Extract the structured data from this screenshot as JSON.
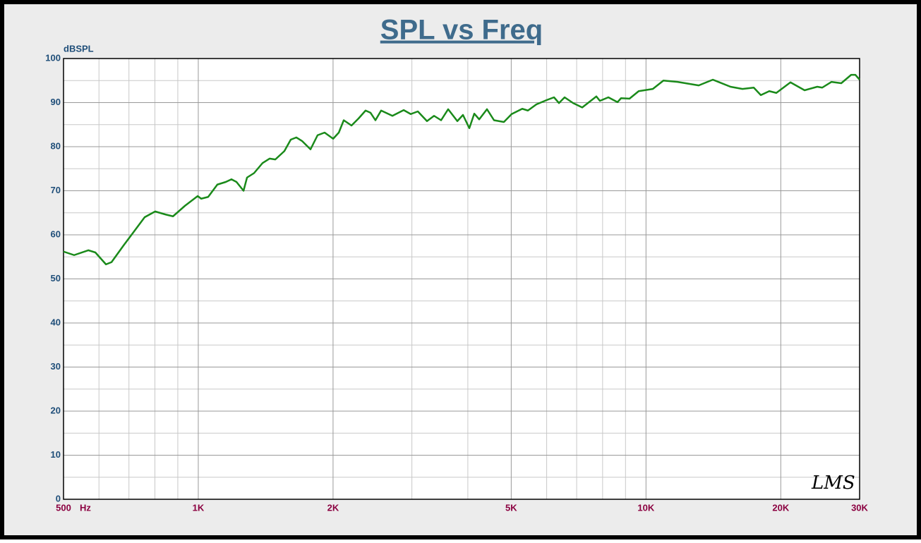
{
  "chart_data": {
    "type": "line",
    "title": "SPL vs Freq",
    "y_label": "dBSPL",
    "x_label": "Hz",
    "annotation": "LMS",
    "x_scale": "log",
    "grid": true,
    "xlim": [
      500,
      30000
    ],
    "ylim": [
      0,
      100
    ],
    "xticks": [
      {
        "value": 500,
        "label": "500"
      },
      {
        "value": 1000,
        "label": "1K"
      },
      {
        "value": 2000,
        "label": "2K"
      },
      {
        "value": 5000,
        "label": "5K"
      },
      {
        "value": 10000,
        "label": "10K"
      },
      {
        "value": 20000,
        "label": "20K"
      },
      {
        "value": 30000,
        "label": "30K"
      }
    ],
    "xminor_ticks": [
      600,
      700,
      800,
      900,
      3000,
      4000,
      6000,
      7000,
      8000,
      9000
    ],
    "yticks": [
      0,
      10,
      20,
      30,
      40,
      50,
      60,
      70,
      80,
      90,
      100
    ],
    "yminor_ticks": [
      5,
      15,
      25,
      35,
      45,
      55,
      65,
      75,
      85,
      95
    ],
    "x": [
      500,
      528,
      568,
      589,
      622,
      640,
      681,
      719,
      759,
      801,
      846,
      878,
      934,
      997,
      1015,
      1052,
      1103,
      1152,
      1186,
      1217,
      1262,
      1285,
      1332,
      1392,
      1443,
      1486,
      1557,
      1609,
      1656,
      1705,
      1781,
      1847,
      1915,
      2001,
      2060,
      2113,
      2199,
      2280,
      2364,
      2425,
      2487,
      2561,
      2714,
      2876,
      2982,
      3093,
      3242,
      3362,
      3486,
      3615,
      3790,
      3901,
      4031,
      4135,
      4241,
      4414,
      4577,
      4815,
      5011,
      5292,
      5448,
      5691,
      6009,
      6231,
      6392,
      6580,
      6873,
      7204,
      7747,
      7889,
      8240,
      8638,
      8796,
      9188,
      9632,
      10357,
      10937,
      11761,
      13115,
      14103,
      15442,
      16424,
      17406,
      18050,
      18853,
      19550,
      21022,
      22605,
      24132,
      24753,
      25950,
      27299,
      28725,
      29361,
      30000
    ],
    "series": [
      {
        "name": "SPL",
        "color": "#1a8a1a",
        "values": [
          56.2,
          55.4,
          56.5,
          56,
          53.3,
          53.8,
          57.6,
          60.8,
          64,
          65.3,
          64.6,
          64.2,
          66.6,
          68.8,
          68.2,
          68.6,
          71.4,
          72,
          72.6,
          72,
          70,
          73,
          74,
          76.3,
          77.3,
          77.1,
          79,
          81.6,
          82.1,
          81.3,
          79.4,
          82.6,
          83.2,
          81.8,
          83.2,
          86,
          84.8,
          86.4,
          88.2,
          87.7,
          86,
          88.2,
          87,
          88.3,
          87.4,
          88,
          85.8,
          87,
          86,
          88.5,
          85.8,
          87.2,
          84.2,
          87.5,
          86.2,
          88.5,
          86,
          85.6,
          87.4,
          88.6,
          88.2,
          89.6,
          90.6,
          91.2,
          89.9,
          91.2,
          89.9,
          88.9,
          91.4,
          90.4,
          91.2,
          90.1,
          91,
          90.9,
          92.6,
          93.1,
          95,
          94.7,
          93.9,
          95.2,
          93.6,
          93.1,
          93.4,
          91.7,
          92.6,
          92.2,
          94.6,
          92.8,
          93.6,
          93.4,
          94.7,
          94.4,
          96.3,
          96.3,
          95.2
        ]
      }
    ]
  }
}
